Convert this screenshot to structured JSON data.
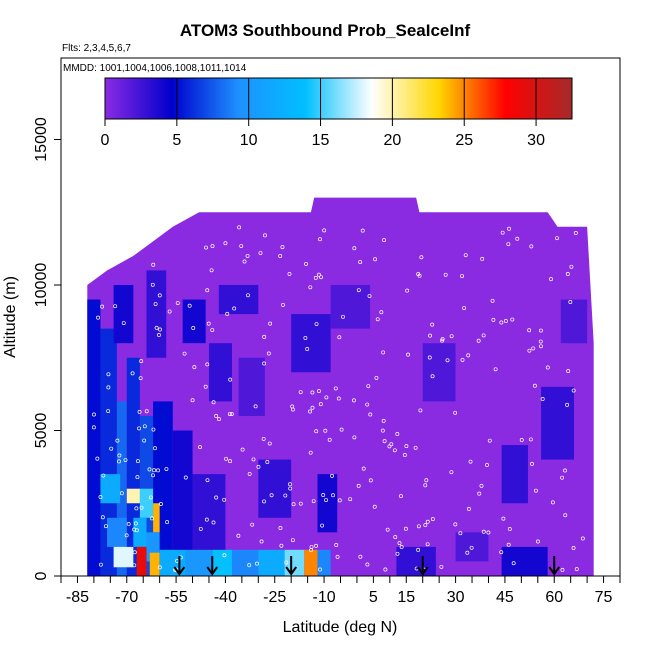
{
  "chart_data": {
    "type": "heatmap",
    "title": "ATOM3 Southbound Prob_SeaIceInf",
    "flights_note": "Flts: 2,3,4,5,6,7",
    "dates_note": "MMDD: 1001,1004,1006,1008,1011,1014",
    "xlabel": "Latitude (deg N)",
    "ylabel": "Altitude (m)",
    "xlim": [
      -90,
      80
    ],
    "ylim": [
      0,
      17800
    ],
    "x_ticks": [
      -85,
      -70,
      -55,
      -40,
      -25,
      -10,
      5,
      15,
      30,
      45,
      60,
      75
    ],
    "y_ticks": [
      0,
      5000,
      10000,
      15000
    ],
    "colorbar": {
      "ticks": [
        0,
        5,
        10,
        15,
        20,
        25,
        30
      ],
      "min": 0,
      "max": 32.5,
      "colors": [
        "#8a2be2",
        "#0000cd",
        "#1e90ff",
        "#00bfff",
        "#ffffff",
        "#ffd700",
        "#ff0000",
        "#a52a2a"
      ]
    },
    "arrows_latitude": [
      -54,
      -44,
      -20,
      20,
      60
    ],
    "data_extent": {
      "lat_range": [
        -82,
        72
      ],
      "ceiling_profile": [
        {
          "lat": -82,
          "alt": 10000
        },
        {
          "lat": -76,
          "alt": 10500
        },
        {
          "lat": -68,
          "alt": 11000
        },
        {
          "lat": -62,
          "alt": 11500
        },
        {
          "lat": -56,
          "alt": 12000
        },
        {
          "lat": -48,
          "alt": 12500
        },
        {
          "lat": -14,
          "alt": 12500
        },
        {
          "lat": -13,
          "alt": 13000
        },
        {
          "lat": 18,
          "alt": 13000
        },
        {
          "lat": 19,
          "alt": 12500
        },
        {
          "lat": 58,
          "alt": 12500
        },
        {
          "lat": 61,
          "alt": 12000
        },
        {
          "lat": 70,
          "alt": 12000
        },
        {
          "lat": 72,
          "alt": 8000
        }
      ]
    },
    "cells": [
      {
        "lat": [
          -82,
          -78
        ],
        "alt": [
          0,
          9500
        ],
        "value": 5
      },
      {
        "lat": [
          -78,
          -73
        ],
        "alt": [
          0,
          8500
        ],
        "value": 6
      },
      {
        "lat": [
          -73,
          -70
        ],
        "alt": [
          0,
          6000
        ],
        "value": 8
      },
      {
        "lat": [
          -70,
          -66
        ],
        "alt": [
          0,
          7500
        ],
        "value": 6
      },
      {
        "lat": [
          -66,
          -62
        ],
        "alt": [
          0,
          5500
        ],
        "value": 7
      },
      {
        "lat": [
          -62,
          -56
        ],
        "alt": [
          0,
          6000
        ],
        "value": 5
      },
      {
        "lat": [
          -56,
          -50
        ],
        "alt": [
          0,
          5000
        ],
        "value": 4
      },
      {
        "lat": [
          -50,
          -40
        ],
        "alt": [
          0,
          3500
        ],
        "value": 3
      },
      {
        "lat": [
          -74,
          -68
        ],
        "alt": [
          8000,
          10000
        ],
        "value": 4
      },
      {
        "lat": [
          -64,
          -58
        ],
        "alt": [
          7500,
          10500
        ],
        "value": 3
      },
      {
        "lat": [
          -53,
          -46
        ],
        "alt": [
          8000,
          9500
        ],
        "value": 4
      },
      {
        "lat": [
          -45,
          -38
        ],
        "alt": [
          6000,
          8000
        ],
        "value": 3
      },
      {
        "lat": [
          -36,
          -28
        ],
        "alt": [
          5500,
          7500
        ],
        "value": 2
      },
      {
        "lat": [
          -42,
          -30
        ],
        "alt": [
          9000,
          10000
        ],
        "value": 3
      },
      {
        "lat": [
          -20,
          -8
        ],
        "alt": [
          7000,
          9000
        ],
        "value": 3
      },
      {
        "lat": [
          -30,
          -20
        ],
        "alt": [
          2000,
          4000
        ],
        "value": 3
      },
      {
        "lat": [
          -12,
          -6
        ],
        "alt": [
          1500,
          3500
        ],
        "value": 4
      },
      {
        "lat": [
          -8,
          4
        ],
        "alt": [
          8500,
          10000
        ],
        "value": 2
      },
      {
        "lat": [
          20,
          30
        ],
        "alt": [
          6000,
          8000
        ],
        "value": 2
      },
      {
        "lat": [
          44,
          52
        ],
        "alt": [
          2500,
          4500
        ],
        "value": 3
      },
      {
        "lat": [
          56,
          66
        ],
        "alt": [
          4000,
          6500
        ],
        "value": 3
      },
      {
        "lat": [
          62,
          70
        ],
        "alt": [
          8000,
          9500
        ],
        "value": 2
      },
      {
        "lat": [
          30,
          40
        ],
        "alt": [
          500,
          1500
        ],
        "value": 2
      },
      {
        "lat": [
          12,
          24
        ],
        "alt": [
          0,
          1000
        ],
        "value": 3
      },
      {
        "lat": [
          44,
          58
        ],
        "alt": [
          0,
          1000
        ],
        "value": 4
      },
      {
        "lat": [
          -78,
          -72
        ],
        "alt": [
          2500,
          3500
        ],
        "value": 12
      },
      {
        "lat": [
          -70,
          -66
        ],
        "alt": [
          2500,
          3000
        ],
        "value": 20
      },
      {
        "lat": [
          -66,
          -62
        ],
        "alt": [
          2000,
          3000
        ],
        "value": 15
      },
      {
        "lat": [
          -62,
          -60
        ],
        "alt": [
          1500,
          2500
        ],
        "value": 24
      },
      {
        "lat": [
          -76,
          -70
        ],
        "alt": [
          1000,
          2000
        ],
        "value": 9
      },
      {
        "lat": [
          -68,
          -64
        ],
        "alt": [
          1000,
          2000
        ],
        "value": 12
      },
      {
        "lat": [
          -64,
          -60
        ],
        "alt": [
          500,
          1500
        ],
        "value": 10
      },
      {
        "lat": [
          -74,
          -68
        ],
        "alt": [
          300,
          1000
        ],
        "value": 18
      },
      {
        "lat": [
          -67,
          -64
        ],
        "alt": [
          0,
          1000
        ],
        "value": 29
      },
      {
        "lat": [
          -63,
          -60
        ],
        "alt": [
          0,
          800
        ],
        "value": 24
      },
      {
        "lat": [
          -60,
          -52
        ],
        "alt": [
          0,
          900
        ],
        "value": 12
      },
      {
        "lat": [
          -52,
          -44
        ],
        "alt": [
          0,
          900
        ],
        "value": 10
      },
      {
        "lat": [
          -44,
          -38
        ],
        "alt": [
          0,
          900
        ],
        "value": 14
      },
      {
        "lat": [
          -38,
          -30
        ],
        "alt": [
          0,
          900
        ],
        "value": 9
      },
      {
        "lat": [
          -30,
          -22
        ],
        "alt": [
          0,
          900
        ],
        "value": 12
      },
      {
        "lat": [
          -22,
          -16
        ],
        "alt": [
          0,
          900
        ],
        "value": 16
      },
      {
        "lat": [
          -16,
          -12
        ],
        "alt": [
          0,
          900
        ],
        "value": 25
      },
      {
        "lat": [
          -12,
          -8
        ],
        "alt": [
          0,
          900
        ],
        "value": 9
      }
    ]
  }
}
